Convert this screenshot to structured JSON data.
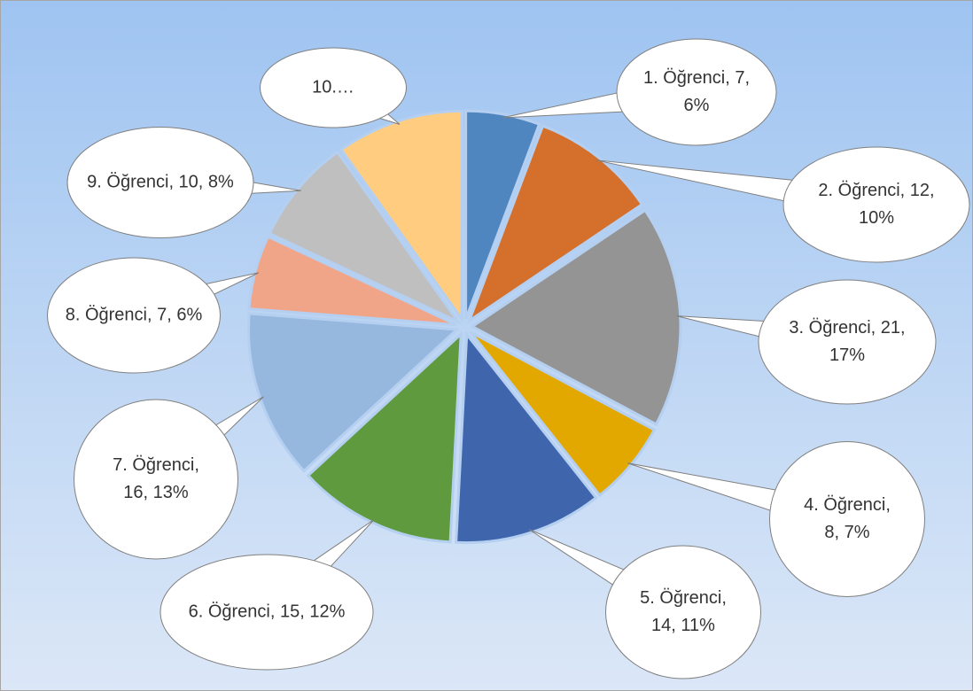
{
  "chart_data": {
    "type": "pie",
    "values": [
      7,
      12,
      21,
      8,
      14,
      15,
      16,
      7,
      10,
      12
    ],
    "value_labels": [
      "1. Öğrenci, 7, 6%",
      "2. Öğrenci, 12, 10%",
      "3. Öğrenci, 21, 17%",
      "4. Öğrenci, 8, 7%",
      "5. Öğrenci, 14, 11%",
      "6. Öğrenci, 15, 12%",
      "7. Öğrenci, 16, 13%",
      "8. Öğrenci, 7, 6%",
      "9. Öğrenci, 10, 8%",
      "10.…"
    ],
    "colors": [
      "#4f86c0",
      "#d4702c",
      "#949494",
      "#e3a800",
      "#3f65ad",
      "#5f9a3e",
      "#97b8de",
      "#f1a588",
      "#bfbfbf",
      "#ffcc80"
    ]
  }
}
